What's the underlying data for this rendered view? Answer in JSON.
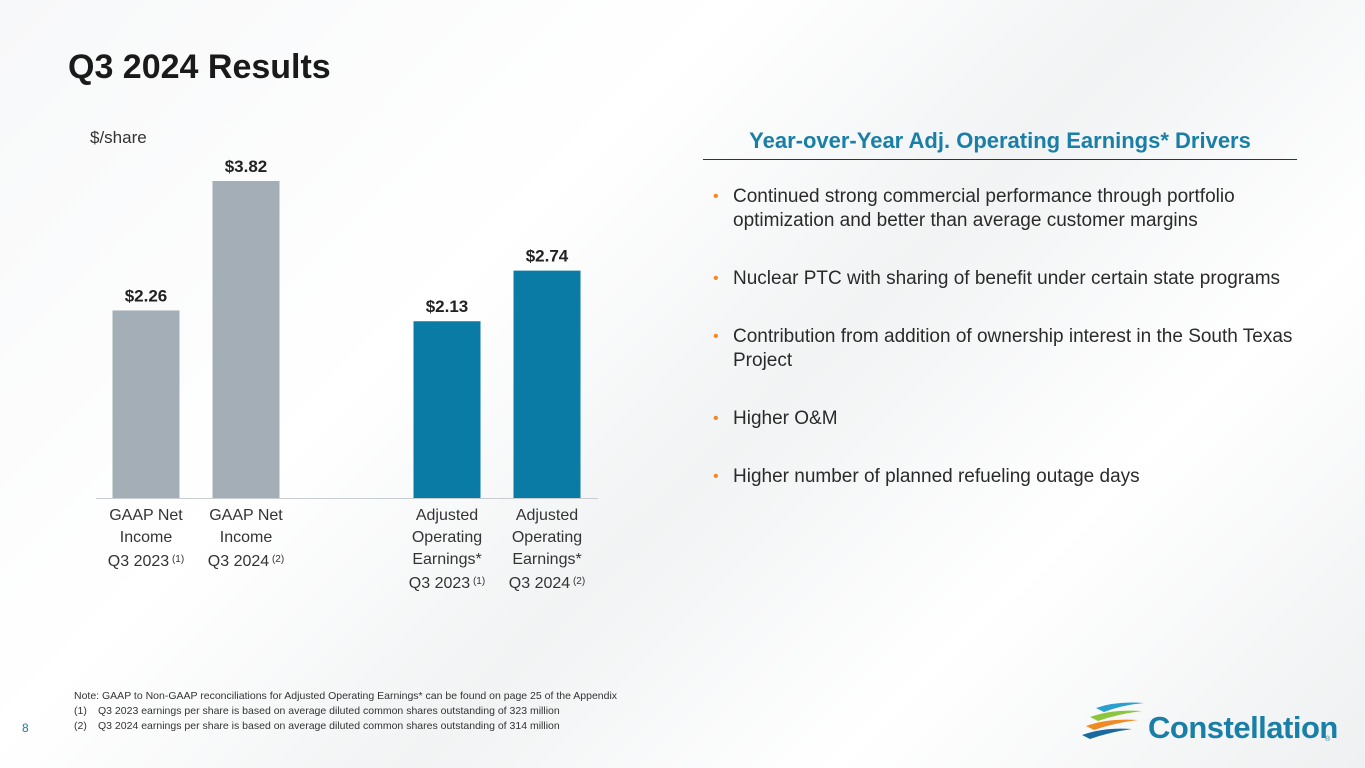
{
  "title": "Q3 2024 Results",
  "unit_label": "$/share",
  "chart_data": {
    "type": "bar",
    "ylabel": "$/share",
    "ylim": [
      0,
      4.0
    ],
    "categories": [
      "GAAP Net Income Q3 2023 (1)",
      "GAAP Net Income Q3 2024 (2)",
      "Adjusted Operating Earnings* Q3 2023 (1)",
      "Adjusted Operating Earnings* Q3 2024 (2)"
    ],
    "values": [
      2.26,
      3.82,
      2.13,
      2.74
    ],
    "data_labels": [
      "$2.26",
      "$3.82",
      "$2.13",
      "$2.74"
    ],
    "colors": [
      "#a3aeb7",
      "#a3aeb7",
      "#0a7ba4",
      "#0a7ba4"
    ]
  },
  "categories_display": [
    {
      "lines": [
        "GAAP Net",
        "Income",
        "Q3 2023"
      ],
      "note": "(1)"
    },
    {
      "lines": [
        "GAAP Net",
        "Income",
        "Q3 2024"
      ],
      "note": "(2)"
    },
    {
      "lines": [
        "Adjusted",
        "Operating",
        "Earnings*",
        "Q3 2023"
      ],
      "note": "(1)"
    },
    {
      "lines": [
        "Adjusted",
        "Operating",
        "Earnings*",
        "Q3 2024"
      ],
      "note": "(2)"
    }
  ],
  "drivers": {
    "title": "Year-over-Year Adj. Operating Earnings* Drivers",
    "bullet_glyph": "•",
    "items": [
      "Continued strong commercial performance through portfolio optimization and better than average customer margins",
      "Nuclear PTC with sharing of benefit under certain state programs",
      "Contribution from addition of ownership interest in the South Texas Project",
      "Higher O&M",
      "Higher number of planned refueling outage days"
    ]
  },
  "notes": {
    "main": "Note: GAAP to Non-GAAP reconciliations for Adjusted Operating Earnings* can be found on page 25 of the Appendix",
    "items": [
      {
        "num": "(1)",
        "text": "Q3 2023 earnings per share is based on average diluted common shares outstanding of 323 million"
      },
      {
        "num": "(2)",
        "text": "Q3 2024 earnings per share is based on average diluted common shares outstanding of 314 million"
      }
    ]
  },
  "page_number": "8",
  "brand": {
    "name": "Constellation",
    "reg": "®",
    "color": "#1a7fa6",
    "accent": "#f08a24"
  }
}
